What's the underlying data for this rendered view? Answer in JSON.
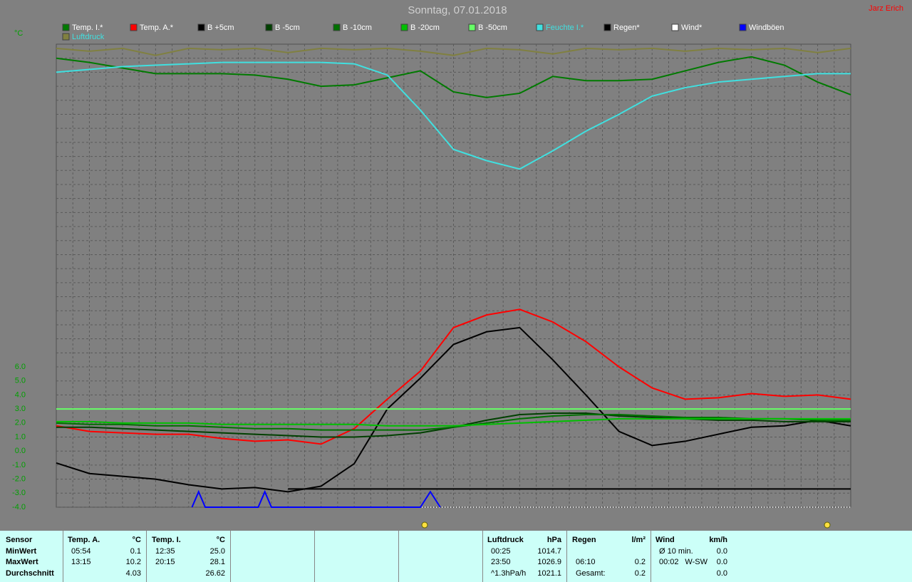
{
  "title": "Sonntag, 07.01.2018",
  "user": "Jarz Erich",
  "chart_data": {
    "type": "line",
    "y_unit": "°C",
    "x": [
      0,
      1,
      2,
      3,
      4,
      5,
      6,
      7,
      8,
      9,
      10,
      11,
      12,
      13,
      14,
      15,
      16,
      17,
      18,
      19,
      20,
      21,
      22,
      23,
      24
    ],
    "xlim": [
      0,
      24
    ],
    "ylim": [
      -4,
      29
    ],
    "yticks": [
      {
        "value": -4,
        "label": "-4.0"
      },
      {
        "value": -3,
        "label": "-3.0"
      },
      {
        "value": -2,
        "label": "-2.0"
      },
      {
        "value": -1,
        "label": "-1.0"
      },
      {
        "value": 0,
        "label": "0.0"
      },
      {
        "value": 1,
        "label": "1.0"
      },
      {
        "value": 2,
        "label": "2.0"
      },
      {
        "value": 3,
        "label": "3.0"
      },
      {
        "value": 4,
        "label": "4.0"
      },
      {
        "value": 5,
        "label": "5.0"
      },
      {
        "value": 6,
        "label": "6.0"
      }
    ],
    "grid": true,
    "series": [
      {
        "name": "Temp. I.*",
        "color": "#007a00",
        "values": [
          28.0,
          27.7,
          27.3,
          26.9,
          26.9,
          26.9,
          26.8,
          26.5,
          26.0,
          26.1,
          26.6,
          27.1,
          25.6,
          25.2,
          25.5,
          26.7,
          26.4,
          26.4,
          26.5,
          27.1,
          27.7,
          28.1,
          27.5,
          26.3,
          25.4
        ]
      },
      {
        "name": "Temp. A.*",
        "color": "#ff0000",
        "values": [
          1.8,
          1.4,
          1.3,
          1.2,
          1.2,
          0.9,
          0.7,
          0.8,
          0.5,
          1.6,
          3.7,
          5.7,
          8.8,
          9.7,
          10.1,
          9.2,
          7.8,
          6.0,
          4.5,
          3.7,
          3.8,
          4.1,
          3.9,
          4.0,
          3.7
        ]
      },
      {
        "name": "B +5cm",
        "color": "#000000",
        "values": [
          -0.85,
          -1.6,
          -1.8,
          -2.0,
          -2.4,
          -2.7,
          -2.6,
          -2.9,
          -2.5,
          -0.9,
          3.0,
          5.2,
          7.6,
          8.5,
          8.8,
          6.5,
          4.0,
          1.4,
          0.4,
          0.7,
          1.2,
          1.7,
          1.8,
          2.2,
          1.8
        ]
      },
      {
        "name": "B -5cm",
        "color": "#004000",
        "values": [
          1.7,
          1.7,
          1.6,
          1.5,
          1.4,
          1.3,
          1.2,
          1.1,
          1.0,
          1.0,
          1.1,
          1.3,
          1.7,
          2.2,
          2.6,
          2.7,
          2.7,
          2.5,
          2.4,
          2.3,
          2.2,
          2.2,
          2.1,
          2.1,
          2.1
        ]
      },
      {
        "name": "B -10cm",
        "color": "#007000",
        "values": [
          2.0,
          1.9,
          1.9,
          1.8,
          1.8,
          1.7,
          1.6,
          1.6,
          1.5,
          1.5,
          1.5,
          1.5,
          1.7,
          2.0,
          2.3,
          2.5,
          2.6,
          2.6,
          2.5,
          2.4,
          2.4,
          2.3,
          2.3,
          2.2,
          2.2
        ]
      },
      {
        "name": "B -20cm",
        "color": "#00c000",
        "values": [
          2.1,
          2.1,
          2.0,
          2.0,
          2.0,
          1.9,
          1.9,
          1.9,
          1.9,
          1.9,
          1.8,
          1.8,
          1.8,
          1.9,
          2.0,
          2.1,
          2.2,
          2.3,
          2.3,
          2.3,
          2.3,
          2.3,
          2.3,
          2.3,
          2.3
        ]
      },
      {
        "name": "B -50cm",
        "color": "#66ff66",
        "values": [
          3.0,
          3.0,
          3.0,
          3.0,
          3.0,
          3.0,
          3.0,
          3.0,
          3.0,
          3.0,
          3.0,
          3.0,
          3.0,
          3.0,
          3.0,
          3.0,
          3.0,
          3.0,
          3.0,
          3.0,
          3.0,
          3.0,
          3.0,
          3.0,
          3.0
        ]
      },
      {
        "name": "Feuchte I.*",
        "color": "#40e0e0",
        "values": [
          27.0,
          27.2,
          27.4,
          27.5,
          27.6,
          27.7,
          27.7,
          27.7,
          27.7,
          27.6,
          26.8,
          24.3,
          21.5,
          20.7,
          20.1,
          21.4,
          22.8,
          24.0,
          25.3,
          25.9,
          26.3,
          26.5,
          26.7,
          26.9,
          26.9
        ]
      },
      {
        "name": "Regen*",
        "color": "#000000",
        "values": [
          null,
          null,
          null,
          null,
          null,
          null,
          null,
          -2.7,
          -2.7,
          -2.7,
          -2.7,
          -2.7,
          -2.7,
          -2.7,
          -2.7,
          -2.7,
          -2.7,
          -2.7,
          -2.7,
          -2.7,
          -2.7,
          -2.7,
          -2.7,
          -2.7,
          -2.7
        ]
      },
      {
        "name": "Wind*",
        "color": "#ffffff",
        "values": [
          null,
          null,
          null,
          null,
          null,
          null,
          null,
          -4.0,
          -4.0,
          -4.0,
          -4.0,
          -4.0,
          -4.0,
          -4.0,
          -4.0,
          -4.0,
          -4.0,
          -4.0,
          -4.0,
          -4.0,
          -4.0,
          -4.0,
          -4.0,
          -4.0,
          -4.0
        ]
      },
      {
        "name": "Windböen",
        "color": "#0000ff",
        "x": [
          4.1,
          4.3,
          4.5,
          6.1,
          6.3,
          6.5,
          11.0,
          11.3,
          11.6
        ],
        "values": [
          -4.0,
          -2.9,
          -4.0,
          -4.0,
          -2.9,
          -4.0,
          -4.0,
          -2.9,
          -4.0
        ]
      },
      {
        "name": "Luftdruck",
        "color": "#808040",
        "values": [
          28.7,
          28.5,
          28.7,
          28.2,
          28.7,
          28.6,
          28.7,
          28.4,
          28.7,
          28.6,
          28.7,
          28.5,
          28.2,
          28.7,
          28.6,
          28.3,
          28.7,
          28.6,
          28.7,
          28.5,
          28.7,
          28.6,
          28.7,
          28.4,
          28.7
        ]
      }
    ]
  },
  "footer": {
    "sensor": {
      "header": "Sensor",
      "rows": [
        "MinWert",
        "MaxWert",
        "Durchschnitt"
      ]
    },
    "columns": [
      {
        "header": "Temp. A.",
        "unit": "°C",
        "rows": [
          {
            "time": "05:54",
            "value": "0.1"
          },
          {
            "time": "13:15",
            "value": "10.2"
          },
          {
            "value": "4.03"
          }
        ]
      },
      {
        "header": "Temp. I.",
        "unit": "°C",
        "rows": [
          {
            "time": "12:35",
            "value": "25.0"
          },
          {
            "time": "20:15",
            "value": "28.1"
          },
          {
            "value": "26.62"
          }
        ]
      },
      {
        "header": "Luftdruck",
        "unit": "hPa",
        "rows": [
          {
            "time": "00:25",
            "value": "1014.7"
          },
          {
            "time": "23:50",
            "value": "1026.9"
          },
          {
            "time": "^1.3hPa/h",
            "value": "1021.1"
          }
        ]
      },
      {
        "header": "Regen",
        "unit": "l/m²",
        "rows": [
          {
            "time": "06:10",
            "value": "0.2"
          },
          {
            "time": "Gesamt:",
            "value": "0.2"
          }
        ]
      },
      {
        "header": "Wind",
        "unit": "km/h",
        "rows": [
          {
            "time": "Ø 10 min.",
            "value": "0.0"
          },
          {
            "time": "00:02",
            "dir": "W-SW",
            "value": "0.0"
          },
          {
            "value": "0.0"
          }
        ]
      }
    ]
  }
}
